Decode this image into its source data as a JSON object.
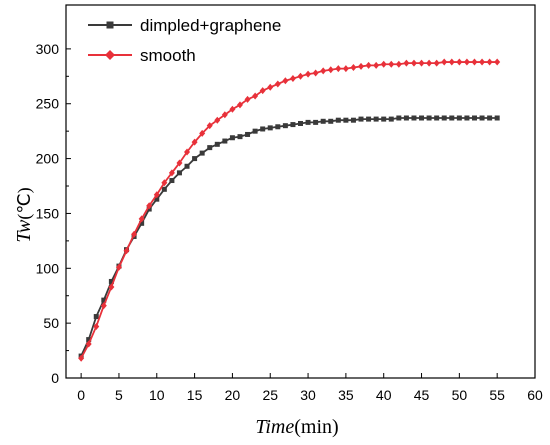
{
  "chart_data": {
    "type": "line",
    "title": "",
    "xlabel": {
      "italic": "Time",
      "unit": "(min)"
    },
    "ylabel": {
      "italic": "Tw",
      "unit": "(℃)"
    },
    "xlim": [
      -2,
      60
    ],
    "ylim": [
      0,
      340
    ],
    "xticks": [
      0,
      5,
      10,
      15,
      20,
      25,
      30,
      35,
      40,
      45,
      50,
      55,
      60
    ],
    "yticks": [
      0,
      50,
      100,
      150,
      200,
      250,
      300
    ],
    "legend_position": "top-left",
    "grid": false,
    "series": [
      {
        "name": "dimpled+graphene",
        "color": "#3a3a3a",
        "marker": "square",
        "x": [
          0,
          1,
          2,
          3,
          4,
          5,
          6,
          7,
          8,
          9,
          10,
          11,
          12,
          13,
          14,
          15,
          16,
          17,
          18,
          19,
          20,
          21,
          22,
          23,
          24,
          25,
          26,
          27,
          28,
          29,
          30,
          31,
          32,
          33,
          34,
          35,
          36,
          37,
          38,
          39,
          40,
          41,
          42,
          43,
          44,
          45,
          46,
          47,
          48,
          49,
          50,
          51,
          52,
          53,
          54,
          55
        ],
        "y": [
          20,
          35,
          56,
          71,
          88,
          102,
          117,
          129,
          141,
          154,
          163,
          172,
          180,
          187,
          193,
          200,
          205,
          210,
          213,
          216,
          219,
          220,
          222,
          225,
          227,
          228,
          229,
          230,
          231,
          232,
          233,
          233,
          234,
          234,
          235,
          235,
          235,
          236,
          236,
          236,
          236,
          236,
          237,
          237,
          237,
          237,
          237,
          237,
          237,
          237,
          237,
          237,
          237,
          237,
          237,
          237
        ]
      },
      {
        "name": "smooth",
        "color": "#e8313a",
        "marker": "diamond",
        "x": [
          0,
          1,
          2,
          3,
          4,
          5,
          6,
          7,
          8,
          9,
          10,
          11,
          12,
          13,
          14,
          15,
          16,
          17,
          18,
          19,
          20,
          21,
          22,
          23,
          24,
          25,
          26,
          27,
          28,
          29,
          30,
          31,
          32,
          33,
          34,
          35,
          36,
          37,
          38,
          39,
          40,
          41,
          42,
          43,
          44,
          45,
          46,
          47,
          48,
          49,
          50,
          51,
          52,
          53,
          54,
          55
        ],
        "y": [
          18,
          31,
          47,
          66,
          83,
          101,
          116,
          131,
          145,
          157,
          167,
          178,
          187,
          196,
          206,
          215,
          223,
          230,
          235,
          240,
          245,
          249,
          254,
          257,
          262,
          265,
          268,
          271,
          273,
          275,
          277,
          278,
          280,
          281,
          282,
          282,
          283,
          284,
          285,
          285,
          286,
          286,
          286,
          287,
          287,
          287,
          287,
          287,
          288,
          288,
          288,
          288,
          288,
          288,
          288,
          288
        ]
      }
    ]
  }
}
